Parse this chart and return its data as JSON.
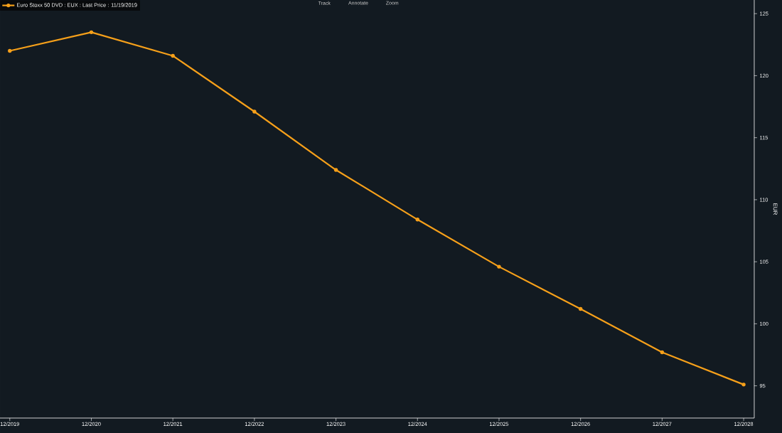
{
  "chart_data": {
    "type": "line",
    "categories": [
      "12/2019",
      "12/2020",
      "12/2021",
      "12/2022",
      "12/2023",
      "12/2024",
      "12/2025",
      "12/2026",
      "12/2027",
      "12/2028"
    ],
    "series": [
      {
        "name": "Euro Stoxx 50 DVD : EUX : Last Price : 11/19/2019",
        "color": "#f6a01a",
        "values": [
          122.0,
          123.5,
          121.6,
          117.1,
          112.4,
          108.4,
          104.6,
          101.2,
          97.7,
          95.1
        ]
      }
    ],
    "ylabel": "EUR",
    "ylim": [
      92.4,
      126.1
    ],
    "yticks": [
      95,
      100,
      105,
      110,
      115,
      120,
      125
    ],
    "annotations": [
      "Track",
      "Annotate",
      "Zoom"
    ],
    "marker": "circle",
    "line_style": "solid",
    "legend": "top left",
    "grid": false
  }
}
